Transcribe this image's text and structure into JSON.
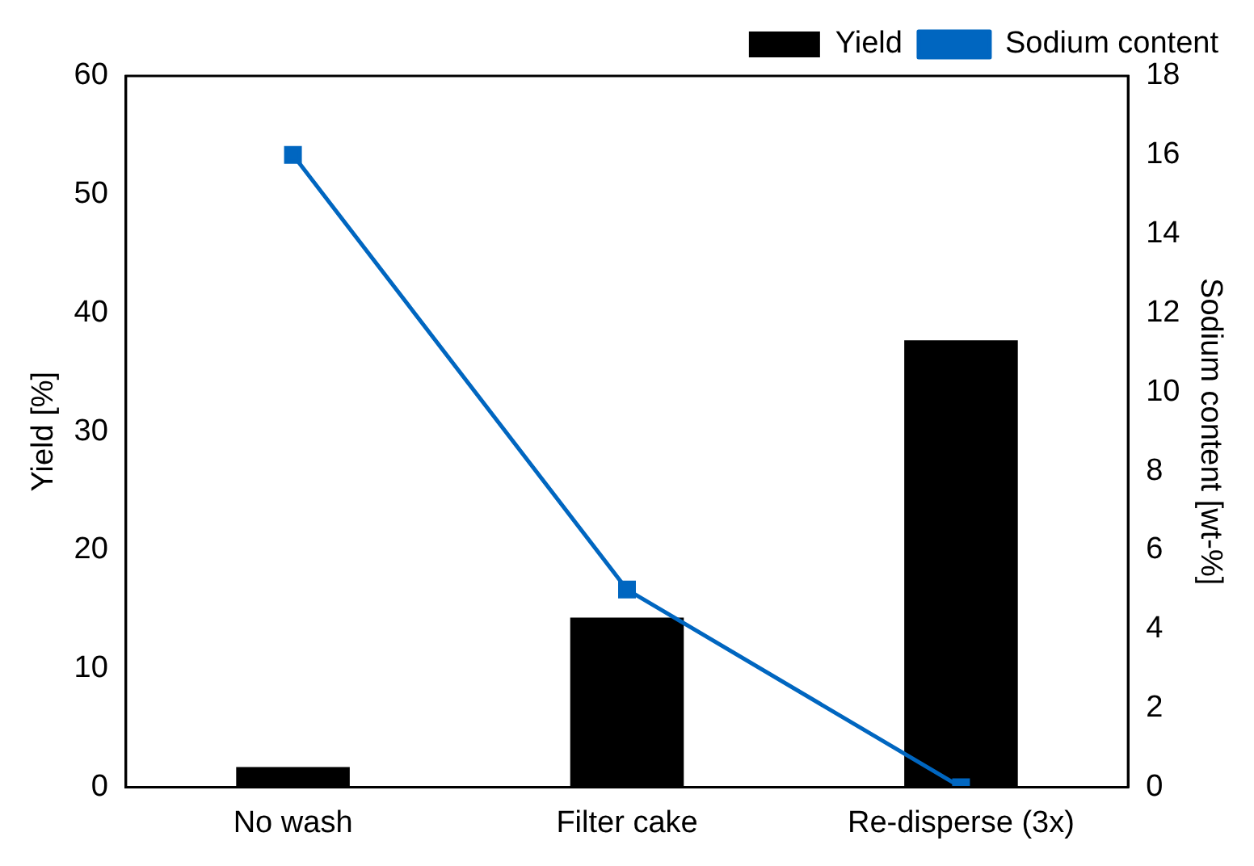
{
  "chart_data": {
    "type": "bar",
    "categories": [
      "No wash",
      "Filter cake",
      "Re-disperse (3x)"
    ],
    "series": [
      {
        "name": "Yield",
        "color": "#000000",
        "values": [
          1.7,
          14.3,
          37.7
        ]
      },
      {
        "name": "Sodium content",
        "type": "line",
        "axis": "y2",
        "color": "#0066c0",
        "values": [
          16,
          5,
          0
        ],
        "marker": "square"
      }
    ],
    "ylabel": "Yield [%]",
    "y2label": "Sodium content [wt-%]",
    "ylim": [
      0,
      60
    ],
    "yticks": [
      0,
      10,
      20,
      30,
      40,
      50,
      60
    ],
    "y2lim": [
      0,
      18
    ],
    "y2ticks": [
      0,
      2,
      4,
      6,
      8,
      10,
      12,
      14,
      16,
      18
    ],
    "legend": "top right",
    "grid": false
  }
}
